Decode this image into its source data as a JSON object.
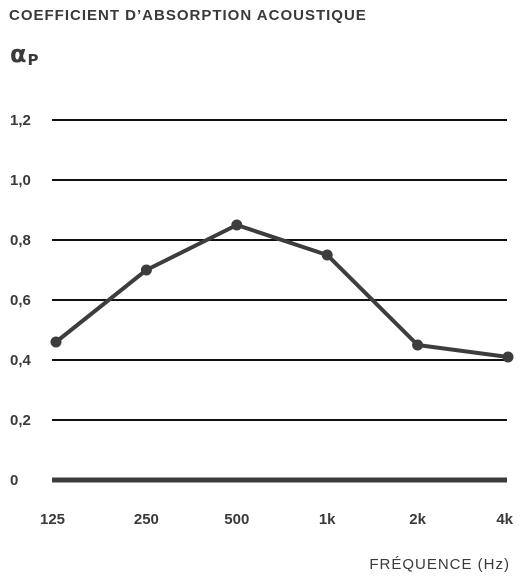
{
  "chart_data": {
    "type": "line",
    "title": "COEFFICIENT D’ABSORPTION ACOUSTIQUE",
    "ylabel_symbol": "α",
    "ylabel_sub": "P",
    "xlabel": "FRÉQUENCE (Hz)",
    "categories": [
      "125",
      "250",
      "500",
      "1k",
      "2k",
      "4k"
    ],
    "y_ticks": [
      "0",
      "0,2",
      "0,4",
      "0,6",
      "0,8",
      "1,0",
      "1,2"
    ],
    "ylim": [
      0,
      1.2
    ],
    "grid": true,
    "series": [
      {
        "values": [
          0.46,
          0.7,
          0.85,
          0.75,
          0.45,
          0.41
        ]
      }
    ],
    "colors": {
      "line": "#3d3d3d",
      "grid": "#111111",
      "text": "#3a3a3a"
    }
  }
}
